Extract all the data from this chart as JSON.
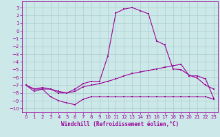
{
  "xlabel": "Windchill (Refroidissement éolien,°C)",
  "background_color": "#cde8e8",
  "grid_color": "#aacccc",
  "line_color": "#990099",
  "x_ticks": [
    0,
    1,
    2,
    3,
    4,
    5,
    6,
    7,
    8,
    9,
    10,
    11,
    12,
    13,
    14,
    15,
    16,
    17,
    18,
    19,
    20,
    21,
    22,
    23
  ],
  "ylim": [
    -10.5,
    3.8
  ],
  "xlim": [
    -0.5,
    23.5
  ],
  "yticks": [
    3,
    2,
    1,
    0,
    -1,
    -2,
    -3,
    -4,
    -5,
    -6,
    -7,
    -8,
    -9,
    -10
  ],
  "line1_x": [
    0,
    1,
    2,
    3,
    4,
    5,
    6,
    7,
    8,
    9,
    10,
    11,
    12,
    13,
    14,
    15,
    16,
    17,
    18,
    19,
    20,
    21,
    22,
    23
  ],
  "line1_y": [
    -7.0,
    -7.8,
    -7.5,
    -8.5,
    -9.0,
    -9.3,
    -9.5,
    -8.8,
    -8.5,
    -8.5,
    -8.5,
    -8.5,
    -8.5,
    -8.5,
    -8.5,
    -8.5,
    -8.5,
    -8.5,
    -8.5,
    -8.5,
    -8.5,
    -8.5,
    -8.5,
    -8.8
  ],
  "line2_x": [
    0,
    1,
    2,
    3,
    4,
    5,
    6,
    7,
    8,
    9,
    10,
    11,
    12,
    13,
    14,
    15,
    16,
    17,
    18,
    19,
    20,
    21,
    22,
    23
  ],
  "line2_y": [
    -7.0,
    -7.5,
    -7.3,
    -7.5,
    -7.8,
    -8.0,
    -7.8,
    -7.2,
    -7.0,
    -6.8,
    -6.5,
    -6.2,
    -5.8,
    -5.5,
    -5.3,
    -5.1,
    -4.9,
    -4.7,
    -4.5,
    -4.3,
    -5.8,
    -5.8,
    -6.2,
    -8.7
  ],
  "line3_x": [
    0,
    1,
    2,
    3,
    4,
    5,
    6,
    7,
    8,
    9,
    10,
    11,
    12,
    13,
    14,
    15,
    16,
    17,
    18,
    19,
    20,
    21,
    22,
    23
  ],
  "line3_y": [
    -7.0,
    -7.5,
    -7.5,
    -7.5,
    -8.0,
    -8.0,
    -7.5,
    -6.8,
    -6.5,
    -6.5,
    -3.3,
    2.3,
    2.8,
    3.0,
    2.6,
    2.2,
    -1.3,
    -1.8,
    -4.9,
    -5.0,
    -5.7,
    -6.1,
    -7.0,
    -7.5
  ],
  "tick_fontsize": 5,
  "xlabel_fontsize": 5.5,
  "marker_size": 1.8,
  "line_width": 0.8
}
